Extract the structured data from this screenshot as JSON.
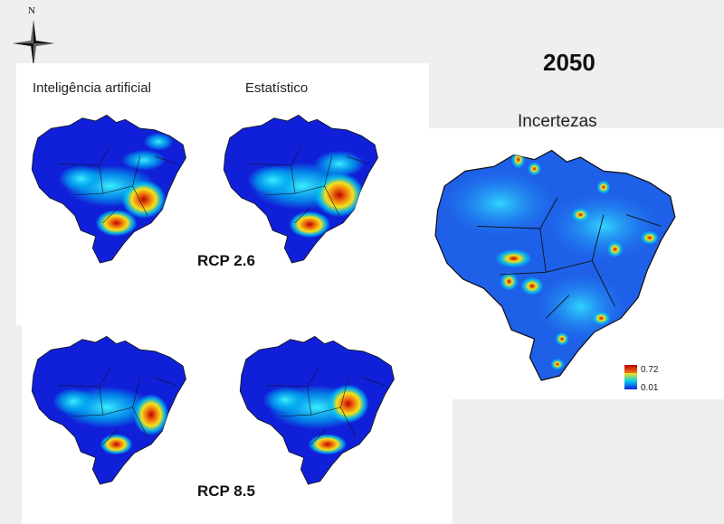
{
  "compass": {
    "north_label": "N",
    "icon": "compass-rose-icon"
  },
  "year": "2050",
  "columns": {
    "ai": "Inteligência artificial",
    "statistical": "Estatístico"
  },
  "scenarios": {
    "rcp26": "RCP 2.6",
    "rcp85": "RCP 8.5"
  },
  "uncertainty": {
    "title": "Incertezas",
    "legend": {
      "max": "0.72",
      "min": "0.01"
    }
  },
  "colors": {
    "low": "#1020d8",
    "cyan": "#00c8f0",
    "yellow": "#f4e31a",
    "orange": "#f07a10",
    "red": "#c00000",
    "border": "#111111"
  }
}
